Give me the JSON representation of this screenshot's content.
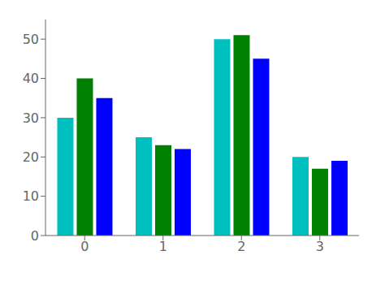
{
  "chart_data": {
    "type": "bar",
    "categories": [
      "0",
      "1",
      "2",
      "3"
    ],
    "series": [
      {
        "color": "#00bfbf",
        "values": [
          30,
          25,
          50,
          20
        ]
      },
      {
        "color": "#008000",
        "values": [
          40,
          23,
          51,
          17
        ]
      },
      {
        "color": "#0000ff",
        "values": [
          35,
          22,
          45,
          19
        ]
      }
    ],
    "ylim": [
      0,
      55
    ],
    "yticks": [
      0,
      10,
      20,
      30,
      40,
      50
    ],
    "grid": false
  }
}
